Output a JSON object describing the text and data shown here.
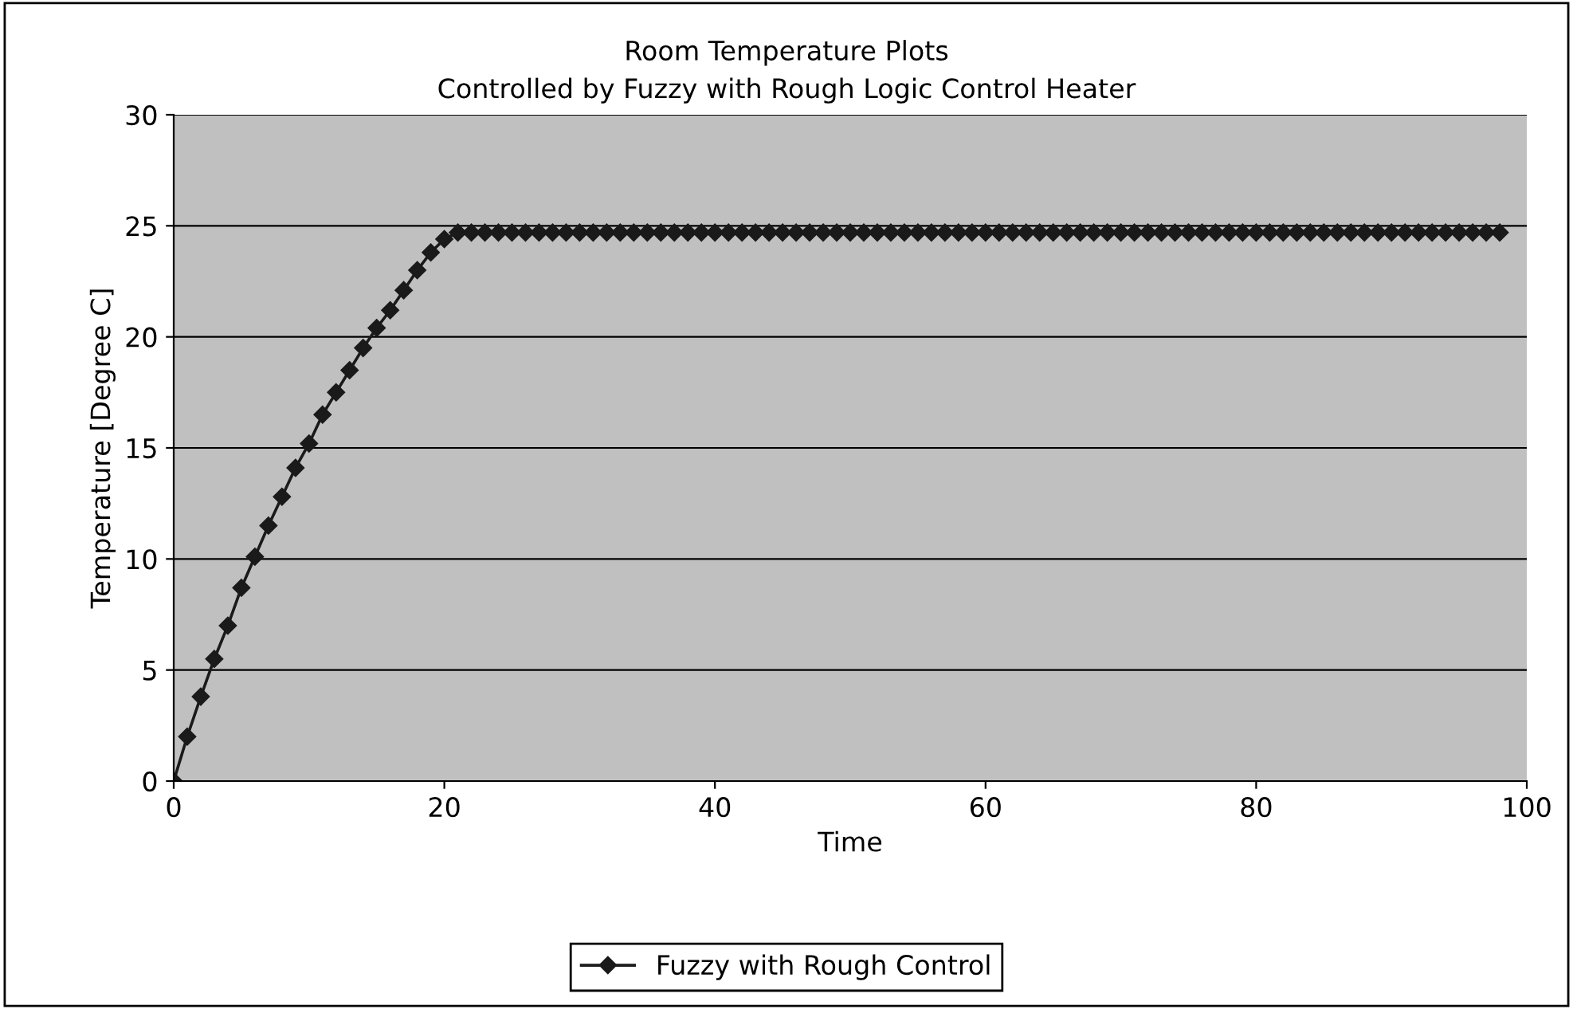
{
  "chart_data": {
    "type": "line",
    "title": "Room Temperature Plots\nControlled by Fuzzy with Rough Logic Control Heater",
    "xlabel": "Time",
    "ylabel": "Temperature [Degree C]",
    "x": [
      0,
      1,
      2,
      3,
      4,
      5,
      6,
      7,
      8,
      9,
      10,
      11,
      12,
      13,
      14,
      15,
      16,
      17,
      18,
      19,
      20,
      21,
      22,
      23,
      24,
      25,
      26,
      27,
      28,
      29,
      30,
      31,
      32,
      33,
      34,
      35,
      36,
      37,
      38,
      39,
      40,
      41,
      42,
      43,
      44,
      45,
      46,
      47,
      48,
      49,
      50,
      51,
      52,
      53,
      54,
      55,
      56,
      57,
      58,
      59,
      60,
      61,
      62,
      63,
      64,
      65,
      66,
      67,
      68,
      69,
      70,
      71,
      72,
      73,
      74,
      75,
      76,
      77,
      78,
      79,
      80,
      81,
      82,
      83,
      84,
      85,
      86,
      87,
      88,
      89,
      90,
      91,
      92,
      93,
      94,
      95,
      96,
      97,
      98
    ],
    "series": [
      {
        "name": "Fuzzy with Rough Control",
        "color": "#1a1a1a",
        "values": [
          0,
          2.0,
          3.8,
          5.5,
          7.0,
          8.7,
          10.1,
          11.5,
          12.8,
          14.1,
          15.2,
          16.5,
          17.5,
          18.5,
          19.5,
          20.4,
          21.2,
          22.1,
          23.0,
          23.8,
          24.4,
          24.7,
          24.7,
          24.7,
          24.7,
          24.7,
          24.7,
          24.7,
          24.7,
          24.7,
          24.7,
          24.7,
          24.7,
          24.7,
          24.7,
          24.7,
          24.7,
          24.7,
          24.7,
          24.7,
          24.7,
          24.7,
          24.7,
          24.7,
          24.7,
          24.7,
          24.7,
          24.7,
          24.7,
          24.7,
          24.7,
          24.7,
          24.7,
          24.7,
          24.7,
          24.7,
          24.7,
          24.7,
          24.7,
          24.7,
          24.7,
          24.7,
          24.7,
          24.7,
          24.7,
          24.7,
          24.7,
          24.7,
          24.7,
          24.7,
          24.7,
          24.7,
          24.7,
          24.7,
          24.7,
          24.7,
          24.7,
          24.7,
          24.7,
          24.7,
          24.7,
          24.7,
          24.7,
          24.7,
          24.7,
          24.7,
          24.7,
          24.7,
          24.7,
          24.7,
          24.7,
          24.7,
          24.7,
          24.7,
          24.7,
          24.7,
          24.7,
          24.7,
          24.7
        ]
      }
    ],
    "xlim": [
      0,
      100
    ],
    "xticks": [
      0,
      20,
      40,
      60,
      80,
      100
    ],
    "ylim": [
      0,
      30
    ],
    "yticks": [
      0,
      5,
      10,
      15,
      20,
      25,
      30
    ],
    "grid": "y",
    "legend": "bottom",
    "marker": "diamond",
    "line_style": "solid"
  }
}
